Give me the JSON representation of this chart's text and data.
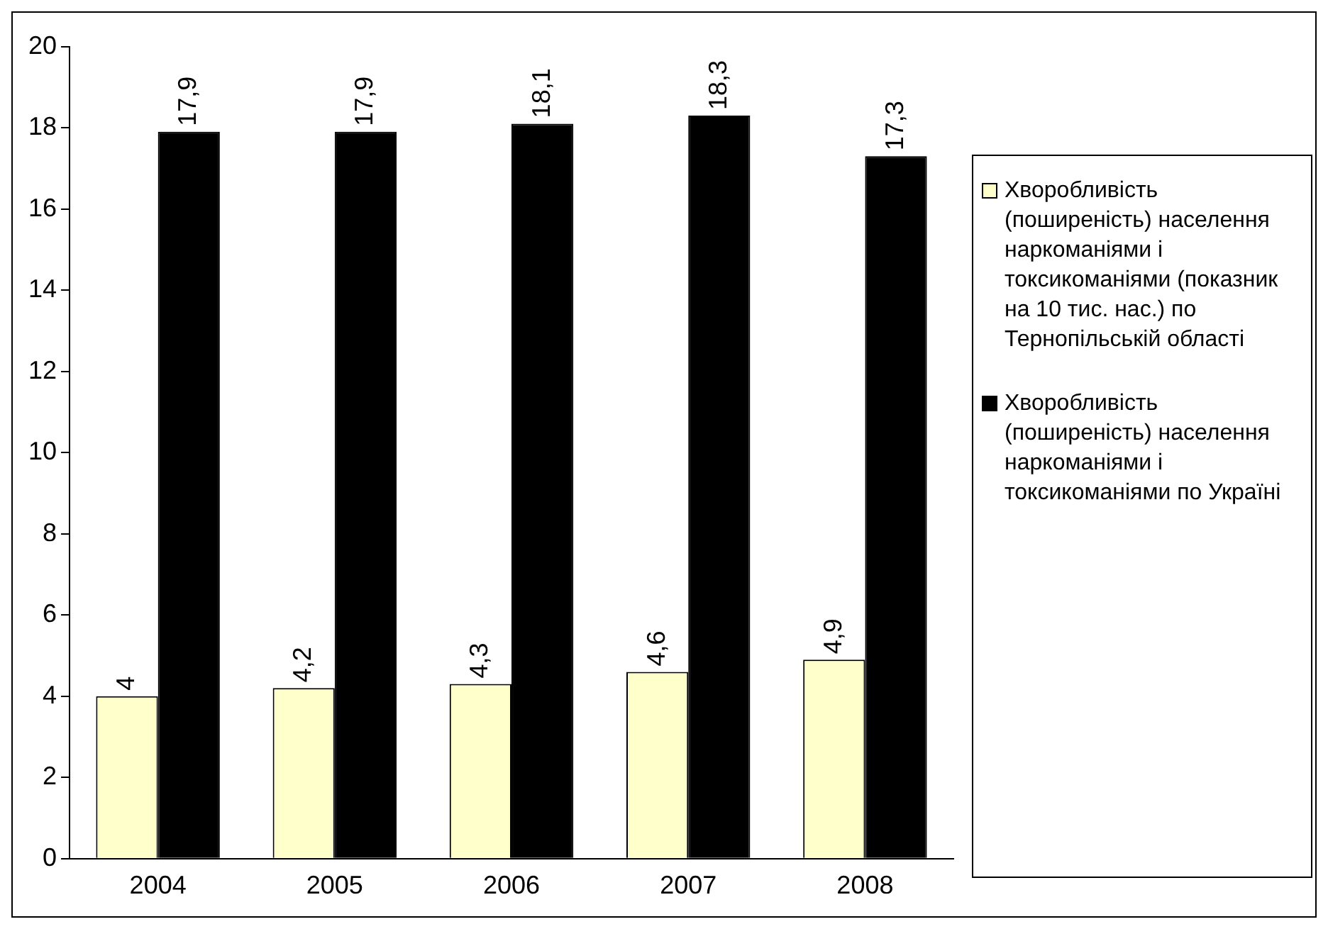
{
  "chart_data": {
    "type": "bar",
    "categories": [
      "2004",
      "2005",
      "2006",
      "2007",
      "2008"
    ],
    "series": [
      {
        "name": "Хворобливість (поширеність) населення наркоманіями і токсикоманіями (показник на 10 тис. нас.) по Тернопільській області",
        "color": "#ffffcc",
        "values": [
          4,
          4.2,
          4.3,
          4.6,
          4.9
        ],
        "value_labels": [
          "4",
          "4,2",
          "4,3",
          "4,6",
          "4,9"
        ]
      },
      {
        "name": "Хворобливість (поширеність) населення наркоманіями і токсикоманіями по Україні",
        "color": "#000000",
        "values": [
          17.9,
          17.9,
          18.1,
          18.3,
          17.3
        ],
        "value_labels": [
          "17,9",
          "17,9",
          "18,1",
          "18,3",
          "17,3"
        ]
      }
    ],
    "ylim": [
      0,
      20
    ],
    "yticks": [
      0,
      2,
      4,
      6,
      8,
      10,
      12,
      14,
      16,
      18,
      20
    ],
    "grid": false,
    "legend": "right"
  }
}
